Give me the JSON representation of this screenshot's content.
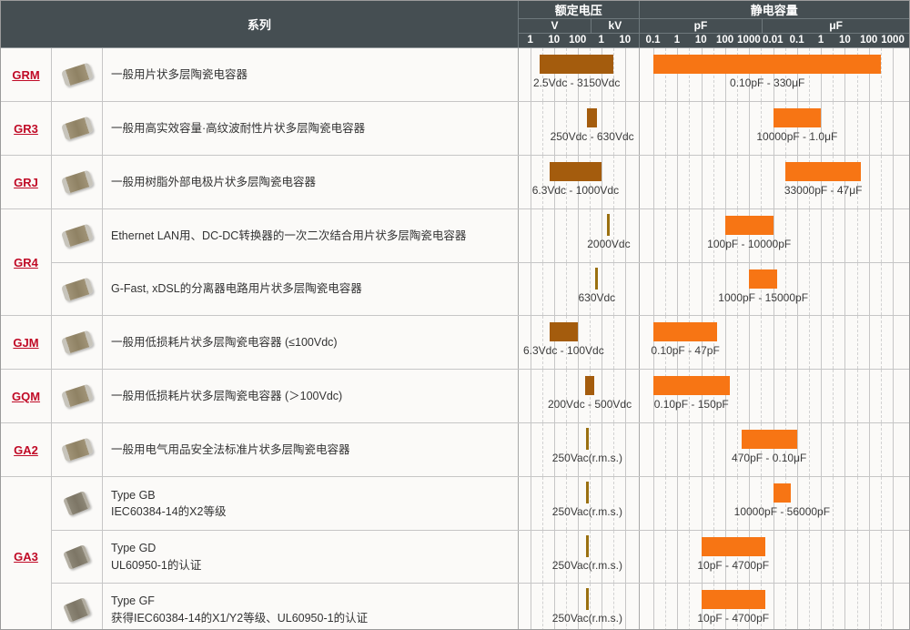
{
  "header": {
    "series_label": "系列"
  },
  "colors": {
    "header_bg": "#454e52",
    "voltage_bar": "#a45c0d",
    "cap_bar": "#f77514",
    "vline": "#9a7010",
    "series_link": "#c00a26",
    "body_bg": "#fbfaf8"
  },
  "chart_data": {
    "type": "bar",
    "subtype": "log-scale range bars",
    "grid": true,
    "voltage_axis": {
      "label": "额定电压",
      "scale": "log",
      "units": [
        {
          "name": "V",
          "ticks": [
            "1",
            "10",
            "100"
          ]
        },
        {
          "name": "kV",
          "ticks": [
            "1",
            "10"
          ]
        }
      ],
      "range_V": [
        1,
        10000
      ],
      "first_tick_pct": 9.77,
      "decade_pct": 19.74,
      "unit_divider_pct": 60.2
    },
    "capacitance_axis": {
      "label": "静电容量",
      "scale": "log",
      "units": [
        {
          "name": "pF",
          "ticks": [
            "0.1",
            "1",
            "10",
            "100",
            "1000"
          ]
        },
        {
          "name": "μF",
          "ticks": [
            "0.01",
            "0.1",
            "1",
            "10",
            "100",
            "1000"
          ]
        }
      ],
      "range_pF": [
        0.1,
        1000000000
      ],
      "first_tick_pct": 5.05,
      "decade_pct": 8.89,
      "unit_divider_pct": 45.45
    },
    "groups": [
      {
        "series": "GRM",
        "rows": [
          {
            "chip": "mlcc",
            "desc": [
              "一般用片状多层陶瓷电容器"
            ],
            "v": [
              2.5,
              3150
            ],
            "v_label": "2.5Vdc - 3150Vdc",
            "c": [
              0.1,
              330000000
            ],
            "c_label": "0.10pF - 330μF"
          }
        ]
      },
      {
        "series": "GR3",
        "rows": [
          {
            "chip": "mlcc",
            "desc": [
              "一般用高实效容量·高纹波耐性片状多层陶瓷电容器"
            ],
            "v": [
              250,
              630
            ],
            "v_label": "250Vdc - 630Vdc",
            "c": [
              10000,
              1000000
            ],
            "c_label": "10000pF - 1.0μF"
          }
        ]
      },
      {
        "series": "GRJ",
        "rows": [
          {
            "chip": "mlcc",
            "desc": [
              "一般用树脂外部电极片状多层陶瓷电容器"
            ],
            "v": [
              6.3,
              1000
            ],
            "v_label": "6.3Vdc - 1000Vdc",
            "c": [
              33000,
              47000000
            ],
            "c_label": "33000pF - 47μF"
          }
        ]
      },
      {
        "series": "GR4",
        "rows": [
          {
            "chip": "mlcc",
            "desc": [
              "Ethernet LAN用、DC-DC转换器的一次二次结合用片状多层陶瓷电容器"
            ],
            "v": [
              2000
            ],
            "v_label": "2000Vdc",
            "c": [
              100,
              10000
            ],
            "c_label": "100pF - 10000pF"
          },
          {
            "chip": "mlcc",
            "desc": [
              "G-Fast, xDSL的分离器电路用片状多层陶瓷电容器"
            ],
            "v": [
              630
            ],
            "v_label": "630Vdc",
            "c": [
              1000,
              15000
            ],
            "c_label": "1000pF - 15000pF"
          }
        ]
      },
      {
        "series": "GJM",
        "rows": [
          {
            "chip": "mlcc",
            "desc": [
              "一般用低损耗片状多层陶瓷电容器 (≤100Vdc)"
            ],
            "v": [
              6.3,
              100
            ],
            "v_label": "6.3Vdc - 100Vdc",
            "c": [
              0.1,
              47
            ],
            "c_label": "0.10pF - 47pF"
          }
        ]
      },
      {
        "series": "GQM",
        "rows": [
          {
            "chip": "mlcc",
            "desc": [
              "一般用低损耗片状多层陶瓷电容器 (＞100Vdc)"
            ],
            "v": [
              200,
              500
            ],
            "v_label": "200Vdc - 500Vdc",
            "c": [
              0.1,
              150
            ],
            "c_label": "0.10pF - 150pF"
          }
        ]
      },
      {
        "series": "GA2",
        "rows": [
          {
            "chip": "mlcc",
            "desc": [
              "一般用电气用品安全法标准片状多层陶瓷电容器"
            ],
            "v": [
              250
            ],
            "v_label": "250Vac(r.m.s.)",
            "c": [
              470,
              100000
            ],
            "c_label": "470pF - 0.10μF"
          }
        ]
      },
      {
        "series": "GA3",
        "rows": [
          {
            "chip": "square",
            "desc": [
              "Type GB",
              "IEC60384-14的X2等级"
            ],
            "v": [
              250
            ],
            "v_label": "250Vac(r.m.s.)",
            "c": [
              10000,
              56000
            ],
            "c_label": "10000pF - 56000pF"
          },
          {
            "chip": "square",
            "desc": [
              "Type GD",
              "UL60950-1的认证"
            ],
            "v": [
              250
            ],
            "v_label": "250Vac(r.m.s.)",
            "c": [
              10,
              4700
            ],
            "c_label": "10pF - 4700pF"
          },
          {
            "chip": "square",
            "desc": [
              "Type GF",
              "获得IEC60384-14的X1/Y2等级、UL60950-1的认证"
            ],
            "v": [
              250
            ],
            "v_label": "250Vac(r.m.s.)",
            "c": [
              10,
              4700
            ],
            "c_label": "10pF - 4700pF"
          }
        ]
      }
    ]
  }
}
